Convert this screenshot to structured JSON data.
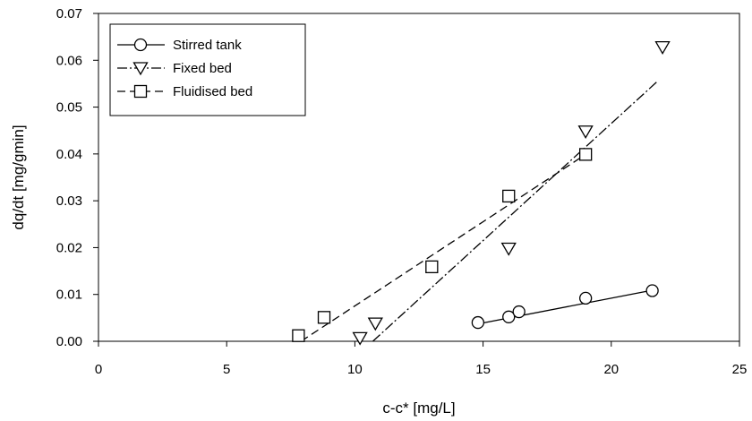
{
  "chart_data": {
    "type": "scatter",
    "xlabel": "c-c* [mg/L]",
    "ylabel": "dq/dt [mg/gmin]",
    "xlim": [
      0,
      25
    ],
    "ylim": [
      0,
      0.07
    ],
    "x_ticks": [
      "0",
      "5",
      "10",
      "15",
      "20",
      "25"
    ],
    "y_ticks": [
      "0.00",
      "0.01",
      "0.02",
      "0.03",
      "0.04",
      "0.05",
      "0.06",
      "0.07"
    ],
    "grid": false,
    "legend_position": "top-left",
    "series": [
      {
        "name": "Stirred tank",
        "marker": "circle",
        "line_style": "solid",
        "x": [
          14.8,
          16.0,
          16.4,
          19.0,
          21.6
        ],
        "y": [
          0.004,
          0.0052,
          0.0063,
          0.0092,
          0.0108
        ],
        "fit_line": {
          "x": [
            14.8,
            21.6
          ],
          "y": [
            0.0037,
            0.0109
          ]
        }
      },
      {
        "name": "Fixed bed",
        "marker": "triangle-down",
        "line_style": "dash-dot",
        "x": [
          10.2,
          10.8,
          16.0,
          19.0,
          22.0
        ],
        "y": [
          0.0007,
          0.0038,
          0.0198,
          0.0448,
          0.0628
        ],
        "fit_line": {
          "x": [
            10.7,
            21.8
          ],
          "y": [
            0.0,
            0.0555
          ]
        }
      },
      {
        "name": "Fluidised bed",
        "marker": "square",
        "line_style": "dashed",
        "x": [
          7.8,
          8.8,
          13.0,
          16.0,
          19.0
        ],
        "y": [
          0.0012,
          0.0051,
          0.0159,
          0.031,
          0.0399
        ],
        "fit_line": {
          "x": [
            7.9,
            19.0
          ],
          "y": [
            0.0,
            0.0399
          ]
        }
      }
    ]
  }
}
